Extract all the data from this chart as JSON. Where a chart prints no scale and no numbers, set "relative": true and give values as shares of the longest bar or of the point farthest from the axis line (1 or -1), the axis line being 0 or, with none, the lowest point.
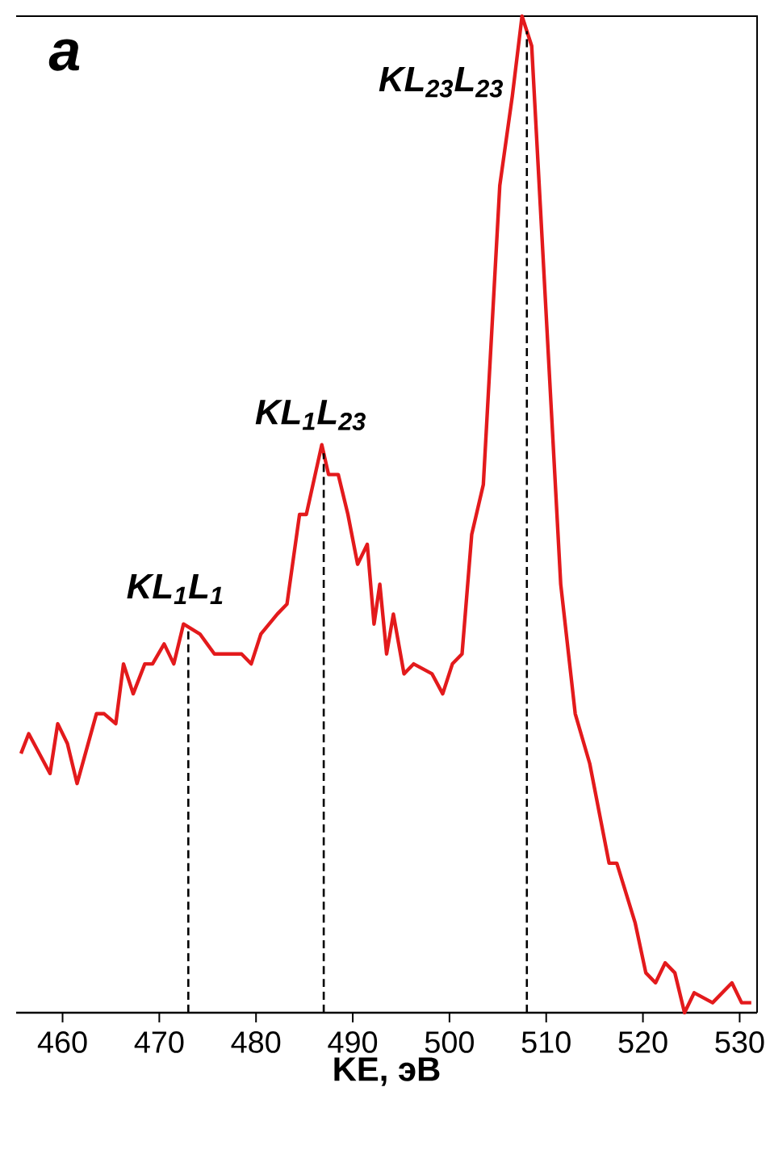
{
  "chart_data": {
    "type": "line",
    "relative": true,
    "xlabel": "KE, эВ",
    "annotations": [
      "a"
    ],
    "x": [
      455.7,
      456.5,
      458.7,
      459.5,
      460.5,
      461.5,
      463.5,
      464.3,
      465.5,
      466.3,
      467.3,
      468.5,
      469.3,
      470.5,
      471.5,
      472.5,
      474.2,
      475.7,
      476.8,
      478.5,
      479.5,
      480.5,
      482.2,
      483.2,
      484.5,
      485.2,
      486.8,
      487.5,
      488.5,
      489.5,
      490.5,
      491.5,
      492.2,
      492.8,
      493.5,
      494.2,
      495.3,
      496.3,
      498.2,
      499.3,
      500.3,
      501.3,
      502.3,
      503.5,
      505.2,
      506.5,
      507.5,
      508.5,
      510.5,
      511.5,
      513.0,
      514.5,
      516.5,
      517.3,
      519.2,
      520.3,
      521.3,
      522.3,
      523.3,
      524.3,
      525.3,
      527.2,
      529.2,
      530.2,
      531.2
    ],
    "series": [
      {
        "color": "#e31a1c",
        "values": [
          0.26,
          0.28,
          0.24,
          0.29,
          0.27,
          0.23,
          0.3,
          0.3,
          0.29,
          0.35,
          0.32,
          0.35,
          0.35,
          0.37,
          0.35,
          0.39,
          0.38,
          0.36,
          0.36,
          0.36,
          0.35,
          0.38,
          0.4,
          0.41,
          0.5,
          0.5,
          0.57,
          0.54,
          0.54,
          0.5,
          0.45,
          0.47,
          0.39,
          0.43,
          0.36,
          0.4,
          0.34,
          0.35,
          0.34,
          0.32,
          0.35,
          0.36,
          0.48,
          0.53,
          0.83,
          0.92,
          1.0,
          0.97,
          0.61,
          0.43,
          0.3,
          0.25,
          0.15,
          0.15,
          0.09,
          0.04,
          0.03,
          0.05,
          0.04,
          0.0,
          0.02,
          0.01,
          0.03,
          0.01,
          0.01
        ]
      }
    ],
    "xlim": [
      455.2,
      531.8
    ],
    "xticks": [
      460,
      470,
      480,
      490,
      500,
      510,
      520,
      530
    ],
    "ref_lines": [
      {
        "axis": "x",
        "value": 473,
        "label": "KL$_{1}$L$_{1}$",
        "color": "#000000",
        "line_style": "dashed"
      },
      {
        "axis": "x",
        "value": 487,
        "label": "KL$_{1}$L$_{23}$",
        "color": "#000000",
        "line_style": "dashed"
      },
      {
        "axis": "x",
        "value": 508,
        "label": "KL$_{23}$L$_{23}$",
        "color": "#000000",
        "line_style": "dashed"
      }
    ]
  }
}
